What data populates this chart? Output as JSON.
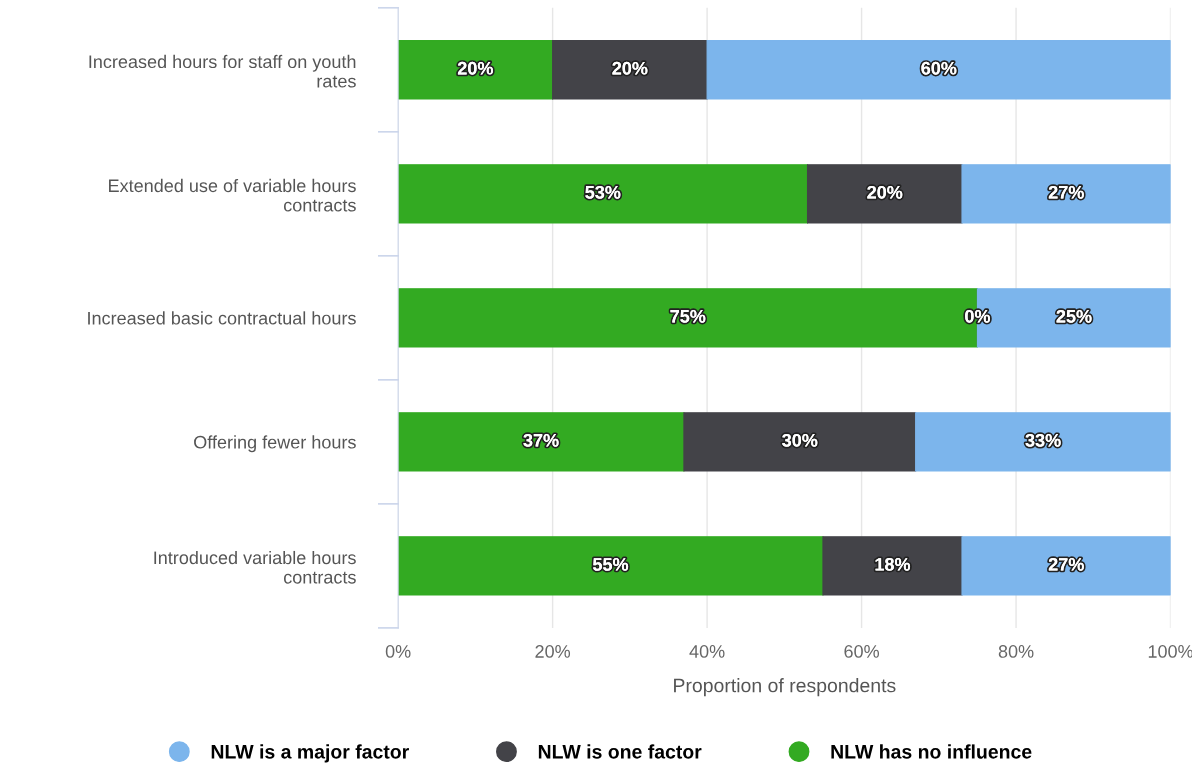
{
  "chart_data": {
    "type": "bar",
    "orientation": "horizontal",
    "stacked": true,
    "categories": [
      "Increased hours for staff on youth\nrates",
      "Extended use of variable hours\ncontracts",
      "Increased basic contractual hours",
      "Offering fewer hours",
      "Introduced variable hours\ncontracts"
    ],
    "series": [
      {
        "name": "NLW has no influence",
        "color": "#33aa22",
        "values": [
          20,
          53,
          75,
          37,
          55
        ],
        "value_labels": [
          "20%",
          "53%",
          "75%",
          "37%",
          "55%"
        ]
      },
      {
        "name": "NLW is one factor",
        "color": "#434348",
        "values": [
          20,
          20,
          0,
          30,
          18
        ],
        "value_labels": [
          "20%",
          "20%",
          "0%",
          "30%",
          "18%"
        ]
      },
      {
        "name": "NLW is a major factor",
        "color": "#7cb5ec",
        "values": [
          60,
          27,
          25,
          33,
          27
        ],
        "value_labels": [
          "60%",
          "27%",
          "25%",
          "33%",
          "27%"
        ]
      }
    ],
    "xlim": [
      0,
      100
    ],
    "xticks": [
      {
        "value": 0,
        "label": "0%"
      },
      {
        "value": 20,
        "label": "20%"
      },
      {
        "value": 40,
        "label": "40%"
      },
      {
        "value": 60,
        "label": "60%"
      },
      {
        "value": 80,
        "label": "80%"
      },
      {
        "value": 100,
        "label": "100%"
      }
    ],
    "xlabel": "Proportion of respondents",
    "grid": "x",
    "legend": "bottom"
  }
}
